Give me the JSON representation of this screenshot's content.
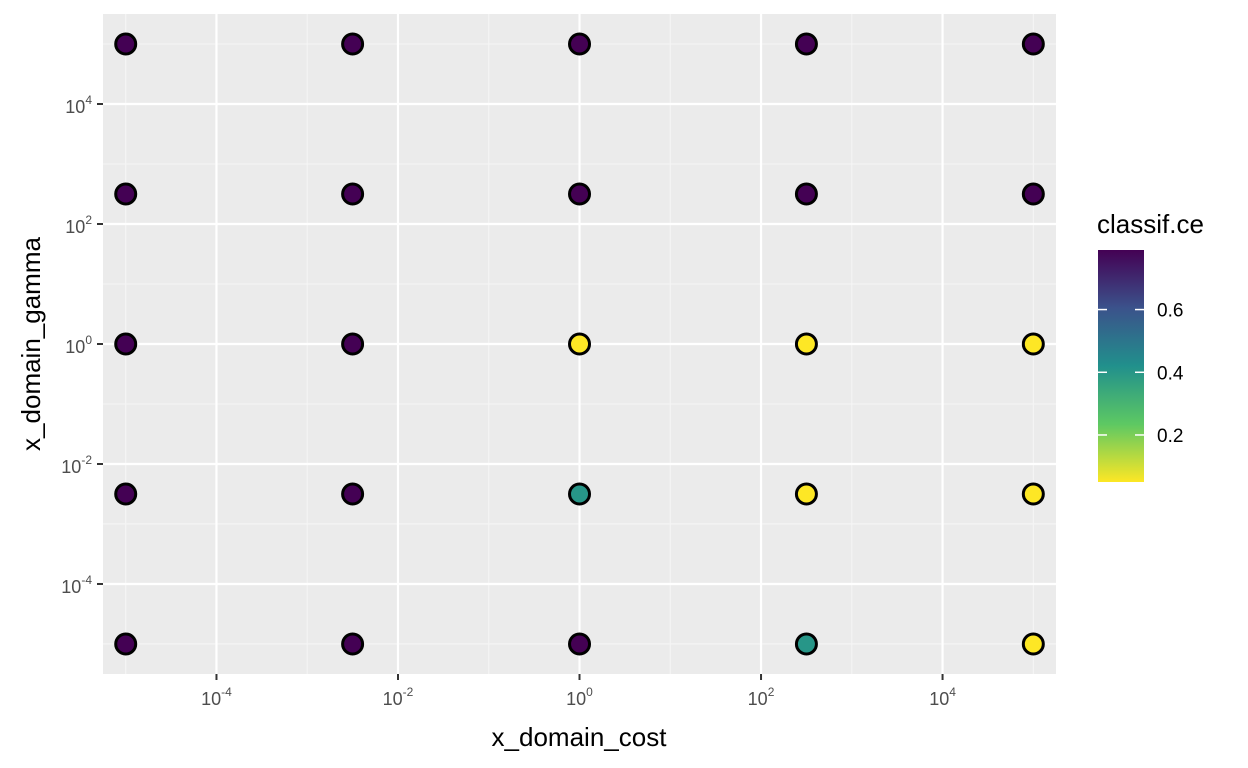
{
  "chart_data": {
    "type": "scatter",
    "xlabel": "x_domain_cost",
    "ylabel": "x_domain_gamma",
    "x_scale": "log10",
    "y_scale": "log10",
    "xlim": [
      5.62e-06,
      177800
    ],
    "ylim": [
      3.16e-06,
      316200
    ],
    "grid": true,
    "x_ticks": [
      {
        "value": 0.0001,
        "base": "10",
        "exp": "-4"
      },
      {
        "value": 0.01,
        "base": "10",
        "exp": "-2"
      },
      {
        "value": 1,
        "base": "10",
        "exp": "0"
      },
      {
        "value": 100,
        "base": "10",
        "exp": "2"
      },
      {
        "value": 10000,
        "base": "10",
        "exp": "4"
      }
    ],
    "y_ticks": [
      {
        "value": 0.0001,
        "base": "10",
        "exp": "-4"
      },
      {
        "value": 0.01,
        "base": "10",
        "exp": "-2"
      },
      {
        "value": 1,
        "base": "10",
        "exp": "0"
      },
      {
        "value": 100,
        "base": "10",
        "exp": "2"
      },
      {
        "value": 10000,
        "base": "10",
        "exp": "4"
      }
    ],
    "x_levels": [
      1e-05,
      0.003162,
      1,
      316.2,
      100000
    ],
    "y_levels": [
      1e-05,
      0.003162,
      1,
      316.2,
      100000
    ],
    "points": [
      {
        "x": 1e-05,
        "y": 1e-05,
        "classif_ce": 0.79
      },
      {
        "x": 1e-05,
        "y": 0.003162,
        "classif_ce": 0.79
      },
      {
        "x": 1e-05,
        "y": 1,
        "classif_ce": 0.79
      },
      {
        "x": 1e-05,
        "y": 316.2,
        "classif_ce": 0.79
      },
      {
        "x": 1e-05,
        "y": 100000,
        "classif_ce": 0.79
      },
      {
        "x": 0.003162,
        "y": 1e-05,
        "classif_ce": 0.79
      },
      {
        "x": 0.003162,
        "y": 0.003162,
        "classif_ce": 0.79
      },
      {
        "x": 0.003162,
        "y": 1,
        "classif_ce": 0.79
      },
      {
        "x": 0.003162,
        "y": 316.2,
        "classif_ce": 0.79
      },
      {
        "x": 0.003162,
        "y": 100000,
        "classif_ce": 0.79
      },
      {
        "x": 1,
        "y": 1e-05,
        "classif_ce": 0.79
      },
      {
        "x": 1,
        "y": 0.003162,
        "classif_ce": 0.4
      },
      {
        "x": 1,
        "y": 1,
        "classif_ce": 0.05
      },
      {
        "x": 1,
        "y": 316.2,
        "classif_ce": 0.79
      },
      {
        "x": 1,
        "y": 100000,
        "classif_ce": 0.79
      },
      {
        "x": 316.2,
        "y": 1e-05,
        "classif_ce": 0.4
      },
      {
        "x": 316.2,
        "y": 0.003162,
        "classif_ce": 0.05
      },
      {
        "x": 316.2,
        "y": 1,
        "classif_ce": 0.05
      },
      {
        "x": 316.2,
        "y": 316.2,
        "classif_ce": 0.79
      },
      {
        "x": 316.2,
        "y": 100000,
        "classif_ce": 0.79
      },
      {
        "x": 100000,
        "y": 1e-05,
        "classif_ce": 0.05
      },
      {
        "x": 100000,
        "y": 0.003162,
        "classif_ce": 0.05
      },
      {
        "x": 100000,
        "y": 1,
        "classif_ce": 0.05
      },
      {
        "x": 100000,
        "y": 316.2,
        "classif_ce": 0.79
      },
      {
        "x": 100000,
        "y": 100000,
        "classif_ce": 0.79
      }
    ],
    "legend": {
      "title": "classif.ce",
      "placement": "right",
      "range": [
        0.05,
        0.79
      ],
      "ticks": [
        {
          "value": 0.6,
          "label": "0.6"
        },
        {
          "value": 0.4,
          "label": "0.4"
        },
        {
          "value": 0.2,
          "label": "0.2"
        }
      ]
    },
    "colors": {
      "panel_background": "#ebebeb",
      "grid_major": "#ffffff",
      "grid_minor": "#f5f5f5",
      "point_stroke": "#000000",
      "scale": [
        "#440154",
        "#3b528b",
        "#21908c",
        "#5dc863",
        "#fde725"
      ]
    }
  }
}
